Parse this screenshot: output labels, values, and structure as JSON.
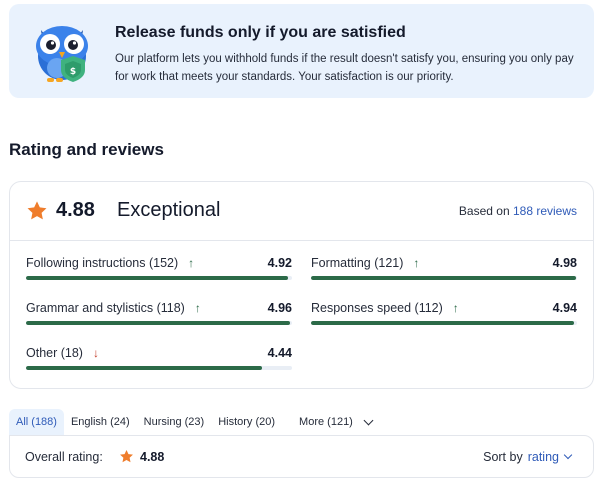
{
  "banner": {
    "title": "Release funds only if you are satisfied",
    "text": "Our platform lets you withhold funds if the result doesn't satisfy you, ensuring you only pay for work that meets your standards. Your satisfaction is our priority.",
    "icon": "owl-shield-icon"
  },
  "section_title": "Rating and reviews",
  "summary": {
    "score": "4.88",
    "verdict": "Exceptional",
    "based_prefix": "Based on",
    "based_link": "188 reviews"
  },
  "metrics": [
    {
      "label": "Following instructions (152)",
      "value": "4.92",
      "trend": "up",
      "fill": 0.984
    },
    {
      "label": "Formatting (121)",
      "value": "4.98",
      "trend": "up",
      "fill": 0.996
    },
    {
      "label": "Grammar and stylistics (118)",
      "value": "4.96",
      "trend": "up",
      "fill": 0.992
    },
    {
      "label": "Responses speed (112)",
      "value": "4.94",
      "trend": "up",
      "fill": 0.988
    },
    {
      "label": "Other (18)",
      "value": "4.44",
      "trend": "down",
      "fill": 0.888
    }
  ],
  "tabs": [
    {
      "label": "All (188)",
      "active": true
    },
    {
      "label": "English (24)",
      "active": false
    },
    {
      "label": "Nursing (23)",
      "active": false
    },
    {
      "label": "History (20)",
      "active": false
    },
    {
      "label": "More (121)",
      "active": false
    }
  ],
  "overall": {
    "label": "Overall rating:",
    "score": "4.88",
    "sort_label": "Sort by",
    "sort_value": "rating"
  },
  "colors": {
    "accent_blue": "#2f5bb8",
    "bar_green": "#2c6a48",
    "star_orange": "#ef7d2c",
    "banner_bg": "#e9f2fd"
  }
}
